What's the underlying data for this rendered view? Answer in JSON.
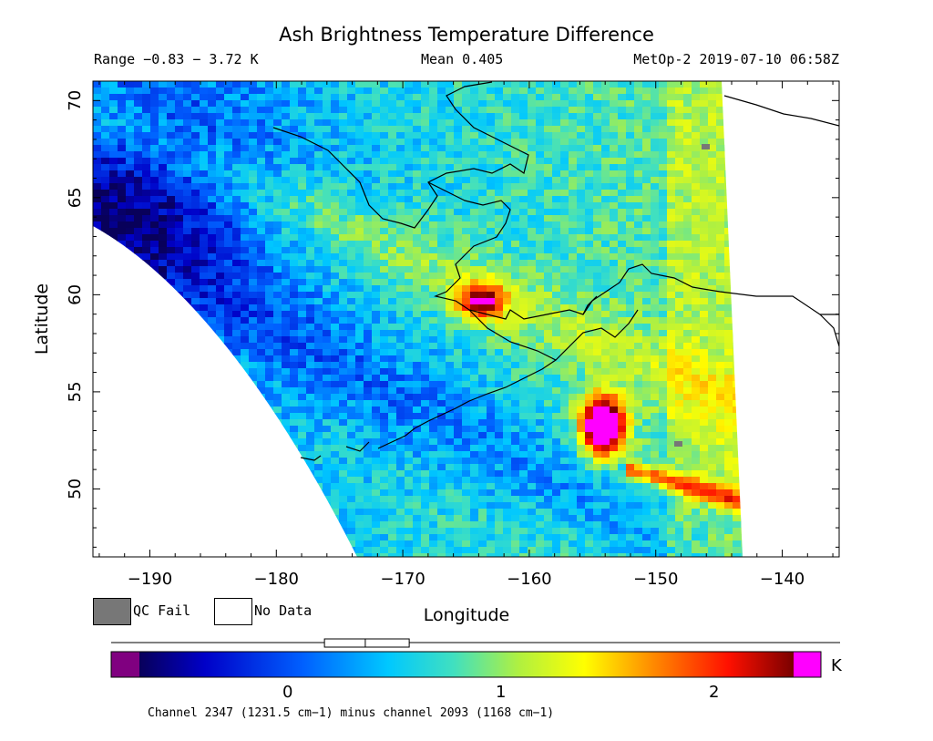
{
  "title": "Ash Brightness Temperature Difference",
  "header": {
    "range": "Range −0.83 − 3.72 K",
    "mean": "Mean 0.405",
    "satellite_time": "MetOp-2 2019-07-10 06:58Z"
  },
  "axes": {
    "xlabel": "Longitude",
    "ylabel": "Latitude",
    "xticks": [
      "−190",
      "−180",
      "−170",
      "−160",
      "−150",
      "−140"
    ],
    "xtick_values": [
      -190,
      -180,
      -170,
      -160,
      -150,
      -140
    ],
    "yticks": [
      "50",
      "55",
      "60",
      "65",
      "70"
    ],
    "ytick_values": [
      50,
      55,
      60,
      65,
      70
    ],
    "xlim": [
      -194.5,
      -135.5
    ],
    "ylim": [
      46.5,
      71
    ]
  },
  "legend": {
    "qc_fail": "QC Fail",
    "no_data": "No Data",
    "qc_color": "#777777",
    "no_data_color": "#ffffff"
  },
  "colorbar": {
    "unit": "K",
    "ticks": [
      "0",
      "1",
      "2"
    ],
    "tick_values": [
      0,
      1,
      2
    ],
    "range": [
      -0.83,
      3.72
    ],
    "boxplot": {
      "q1": 0.18,
      "median": 0.38,
      "q3": 0.58,
      "min": -0.83,
      "max": 3.72
    },
    "under_color": "#800080",
    "over_color": "#ff00ff"
  },
  "footer": "Channel 2347 (1231.5 cm−1) minus channel 2093 (1168 cm−1)",
  "map": {
    "type": "heatmap",
    "background": "satellite swath of brightness temperature difference over Alaska and the North Pacific",
    "features": [
      {
        "name": "ash plume near Cook Inlet",
        "lon": -163,
        "lat": 60,
        "value": 2.2
      },
      {
        "name": "ash cloud south of Alaska Peninsula",
        "lon": -153.5,
        "lat": 53.5,
        "value": 3.5
      },
      {
        "name": "elevated band",
        "lon": -147,
        "lat": 49.5,
        "value": 1.8
      }
    ]
  }
}
